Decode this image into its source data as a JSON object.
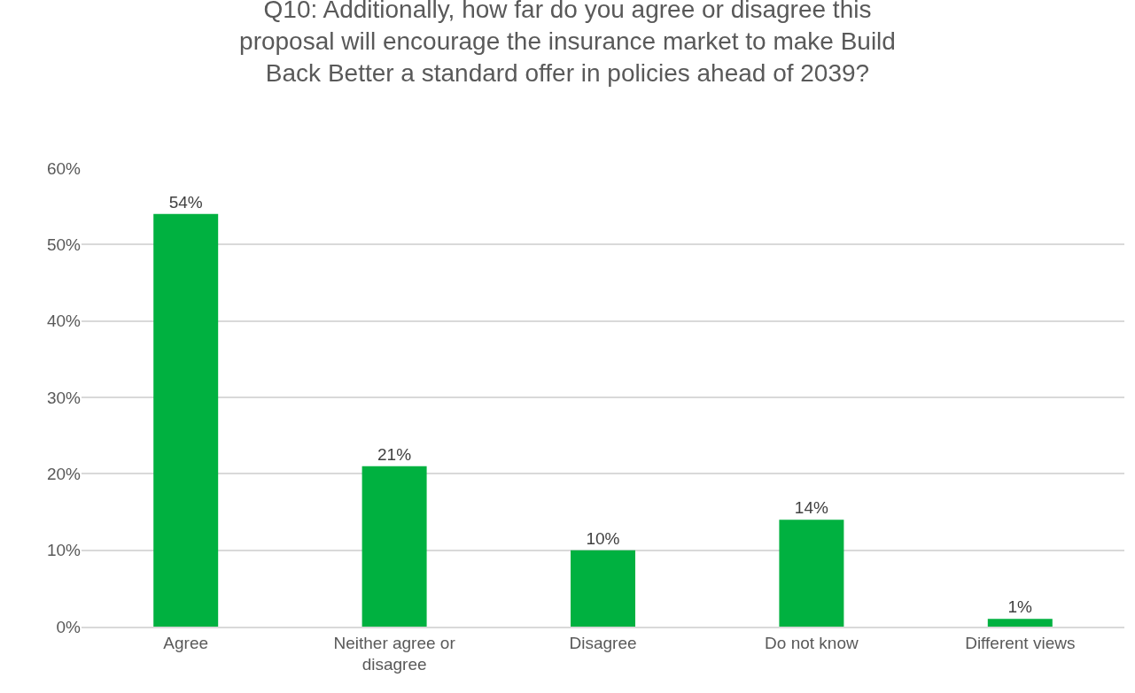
{
  "chart_data": {
    "type": "bar",
    "title": "Q10: Additionally, how far do you agree or disagree this proposal will encourage the insurance market to make Build Back Better a standard offer in policies ahead of 2039?",
    "categories": [
      "Agree",
      "Neither agree or disagree",
      "Disagree",
      "Do not know",
      "Different views"
    ],
    "values": [
      54,
      21,
      10,
      14,
      1
    ],
    "value_labels": [
      "54%",
      "21%",
      "10%",
      "14%",
      "1%"
    ],
    "color": "#00b140",
    "ylim": [
      0,
      60
    ],
    "yticks": [
      {
        "value": 0,
        "label": "0%"
      },
      {
        "value": 10,
        "label": "10%"
      },
      {
        "value": 20,
        "label": "20%"
      },
      {
        "value": 30,
        "label": "30%"
      },
      {
        "value": 40,
        "label": "40%"
      },
      {
        "value": 50,
        "label": "50%"
      },
      {
        "value": 60,
        "label": "60%"
      }
    ],
    "grid": "y"
  }
}
